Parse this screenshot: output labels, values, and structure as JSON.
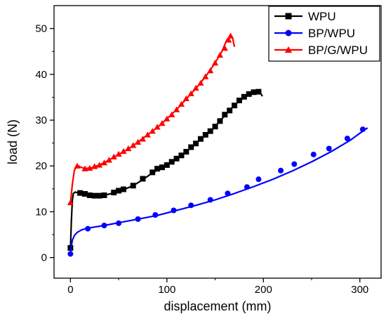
{
  "chart_data": {
    "type": "line",
    "xlabel": "displacement (mm)",
    "ylabel": "load (N)",
    "xlim": [
      -17,
      322
    ],
    "ylim": [
      -4.5,
      55
    ],
    "xticks": [
      0,
      100,
      200,
      300
    ],
    "yticks": [
      0,
      10,
      20,
      30,
      40,
      50
    ],
    "legend_position": "top-right",
    "series": [
      {
        "name": "WPU",
        "color": "#000000",
        "marker": "square",
        "line": [
          [
            0,
            2
          ],
          [
            1,
            8
          ],
          [
            2,
            12.5
          ],
          [
            3,
            14
          ],
          [
            5,
            14.3
          ],
          [
            8,
            14.1
          ],
          [
            12,
            13.9
          ],
          [
            18,
            13.6
          ],
          [
            25,
            13.5
          ],
          [
            35,
            13.6
          ],
          [
            45,
            14.1
          ],
          [
            55,
            14.8
          ],
          [
            65,
            15.7
          ],
          [
            75,
            17
          ],
          [
            85,
            18.5
          ],
          [
            95,
            19.6
          ],
          [
            105,
            20.8
          ],
          [
            115,
            22.2
          ],
          [
            125,
            24
          ],
          [
            135,
            25.8
          ],
          [
            145,
            27.6
          ],
          [
            155,
            29.8
          ],
          [
            165,
            32.2
          ],
          [
            175,
            34.2
          ],
          [
            185,
            35.6
          ],
          [
            193,
            36.1
          ],
          [
            197,
            35.9
          ],
          [
            199,
            35.2
          ]
        ],
        "points": [
          [
            0,
            2.1
          ],
          [
            10,
            14.1
          ],
          [
            15,
            13.9
          ],
          [
            20,
            13.6
          ],
          [
            25,
            13.5
          ],
          [
            30,
            13.5
          ],
          [
            35,
            13.6
          ],
          [
            45,
            14.2
          ],
          [
            50,
            14.6
          ],
          [
            55,
            14.9
          ],
          [
            65,
            15.7
          ],
          [
            75,
            17.2
          ],
          [
            85,
            18.6
          ],
          [
            90,
            19.4
          ],
          [
            95,
            19.7
          ],
          [
            100,
            20.2
          ],
          [
            105,
            20.9
          ],
          [
            110,
            21.6
          ],
          [
            115,
            22.3
          ],
          [
            120,
            23.1
          ],
          [
            125,
            24.1
          ],
          [
            130,
            24.9
          ],
          [
            135,
            25.9
          ],
          [
            140,
            26.8
          ],
          [
            145,
            27.6
          ],
          [
            150,
            28.6
          ],
          [
            155,
            29.8
          ],
          [
            160,
            31.2
          ],
          [
            165,
            32.1
          ],
          [
            170,
            33.2
          ],
          [
            175,
            34.3
          ],
          [
            180,
            35.1
          ],
          [
            185,
            35.7
          ],
          [
            190,
            36.1
          ],
          [
            195,
            36.2
          ]
        ]
      },
      {
        "name": "BP/WPU",
        "color": "#0000ff",
        "marker": "circle",
        "line": [
          [
            0,
            0.8
          ],
          [
            1,
            2.5
          ],
          [
            2,
            3.8
          ],
          [
            4,
            4.8
          ],
          [
            7,
            5.5
          ],
          [
            12,
            6.1
          ],
          [
            20,
            6.5
          ],
          [
            35,
            7
          ],
          [
            50,
            7.6
          ],
          [
            70,
            8.4
          ],
          [
            90,
            9.2
          ],
          [
            110,
            10.3
          ],
          [
            130,
            11.4
          ],
          [
            150,
            12.6
          ],
          [
            170,
            14
          ],
          [
            190,
            15.5
          ],
          [
            210,
            17.1
          ],
          [
            230,
            18.9
          ],
          [
            250,
            20.9
          ],
          [
            270,
            23.1
          ],
          [
            290,
            25.6
          ],
          [
            303,
            27.6
          ],
          [
            308,
            28.3
          ]
        ],
        "points": [
          [
            0,
            0.8
          ],
          [
            18,
            6.3
          ],
          [
            35,
            7
          ],
          [
            50,
            7.5
          ],
          [
            70,
            8.4
          ],
          [
            88,
            9.3
          ],
          [
            107,
            10.3
          ],
          [
            125,
            11.4
          ],
          [
            145,
            12.6
          ],
          [
            163,
            14
          ],
          [
            183,
            15.4
          ],
          [
            195,
            17.1
          ],
          [
            218,
            19
          ],
          [
            232,
            20.4
          ],
          [
            252,
            22.5
          ],
          [
            268,
            23.8
          ],
          [
            287,
            26
          ],
          [
            303,
            28
          ]
        ]
      },
      {
        "name": "BP/G/WPU",
        "color": "#ff0000",
        "marker": "triangle",
        "line": [
          [
            0,
            12
          ],
          [
            2,
            16
          ],
          [
            4,
            19
          ],
          [
            7,
            20.2
          ],
          [
            10,
            19.8
          ],
          [
            15,
            19.4
          ],
          [
            22,
            19.6
          ],
          [
            30,
            20.2
          ],
          [
            40,
            21.3
          ],
          [
            50,
            22.5
          ],
          [
            60,
            23.7
          ],
          [
            70,
            25.2
          ],
          [
            80,
            26.8
          ],
          [
            90,
            28.4
          ],
          [
            100,
            30.3
          ],
          [
            110,
            32.3
          ],
          [
            120,
            34.6
          ],
          [
            130,
            36.9
          ],
          [
            140,
            39.5
          ],
          [
            150,
            42.5
          ],
          [
            157,
            45
          ],
          [
            162,
            47.5
          ],
          [
            165,
            48.2
          ],
          [
            168,
            48
          ],
          [
            170,
            46
          ]
        ],
        "points": [
          [
            0,
            12
          ],
          [
            7,
            20
          ],
          [
            15,
            19.4
          ],
          [
            20,
            19.5
          ],
          [
            25,
            19.9
          ],
          [
            30,
            20.2
          ],
          [
            35,
            20.7
          ],
          [
            40,
            21.3
          ],
          [
            45,
            22
          ],
          [
            50,
            22.6
          ],
          [
            55,
            23.2
          ],
          [
            60,
            23.8
          ],
          [
            65,
            24.5
          ],
          [
            70,
            25.2
          ],
          [
            75,
            25.9
          ],
          [
            80,
            26.8
          ],
          [
            85,
            27.6
          ],
          [
            90,
            28.5
          ],
          [
            95,
            29.3
          ],
          [
            100,
            30.3
          ],
          [
            105,
            31.2
          ],
          [
            110,
            32.3
          ],
          [
            115,
            33.5
          ],
          [
            120,
            34.7
          ],
          [
            125,
            35.8
          ],
          [
            130,
            37
          ],
          [
            135,
            38.1
          ],
          [
            140,
            39.5
          ],
          [
            145,
            40.8
          ],
          [
            150,
            42.5
          ],
          [
            155,
            44.2
          ],
          [
            160,
            45.7
          ],
          [
            164,
            47.5
          ],
          [
            166,
            48.4
          ]
        ]
      }
    ]
  }
}
